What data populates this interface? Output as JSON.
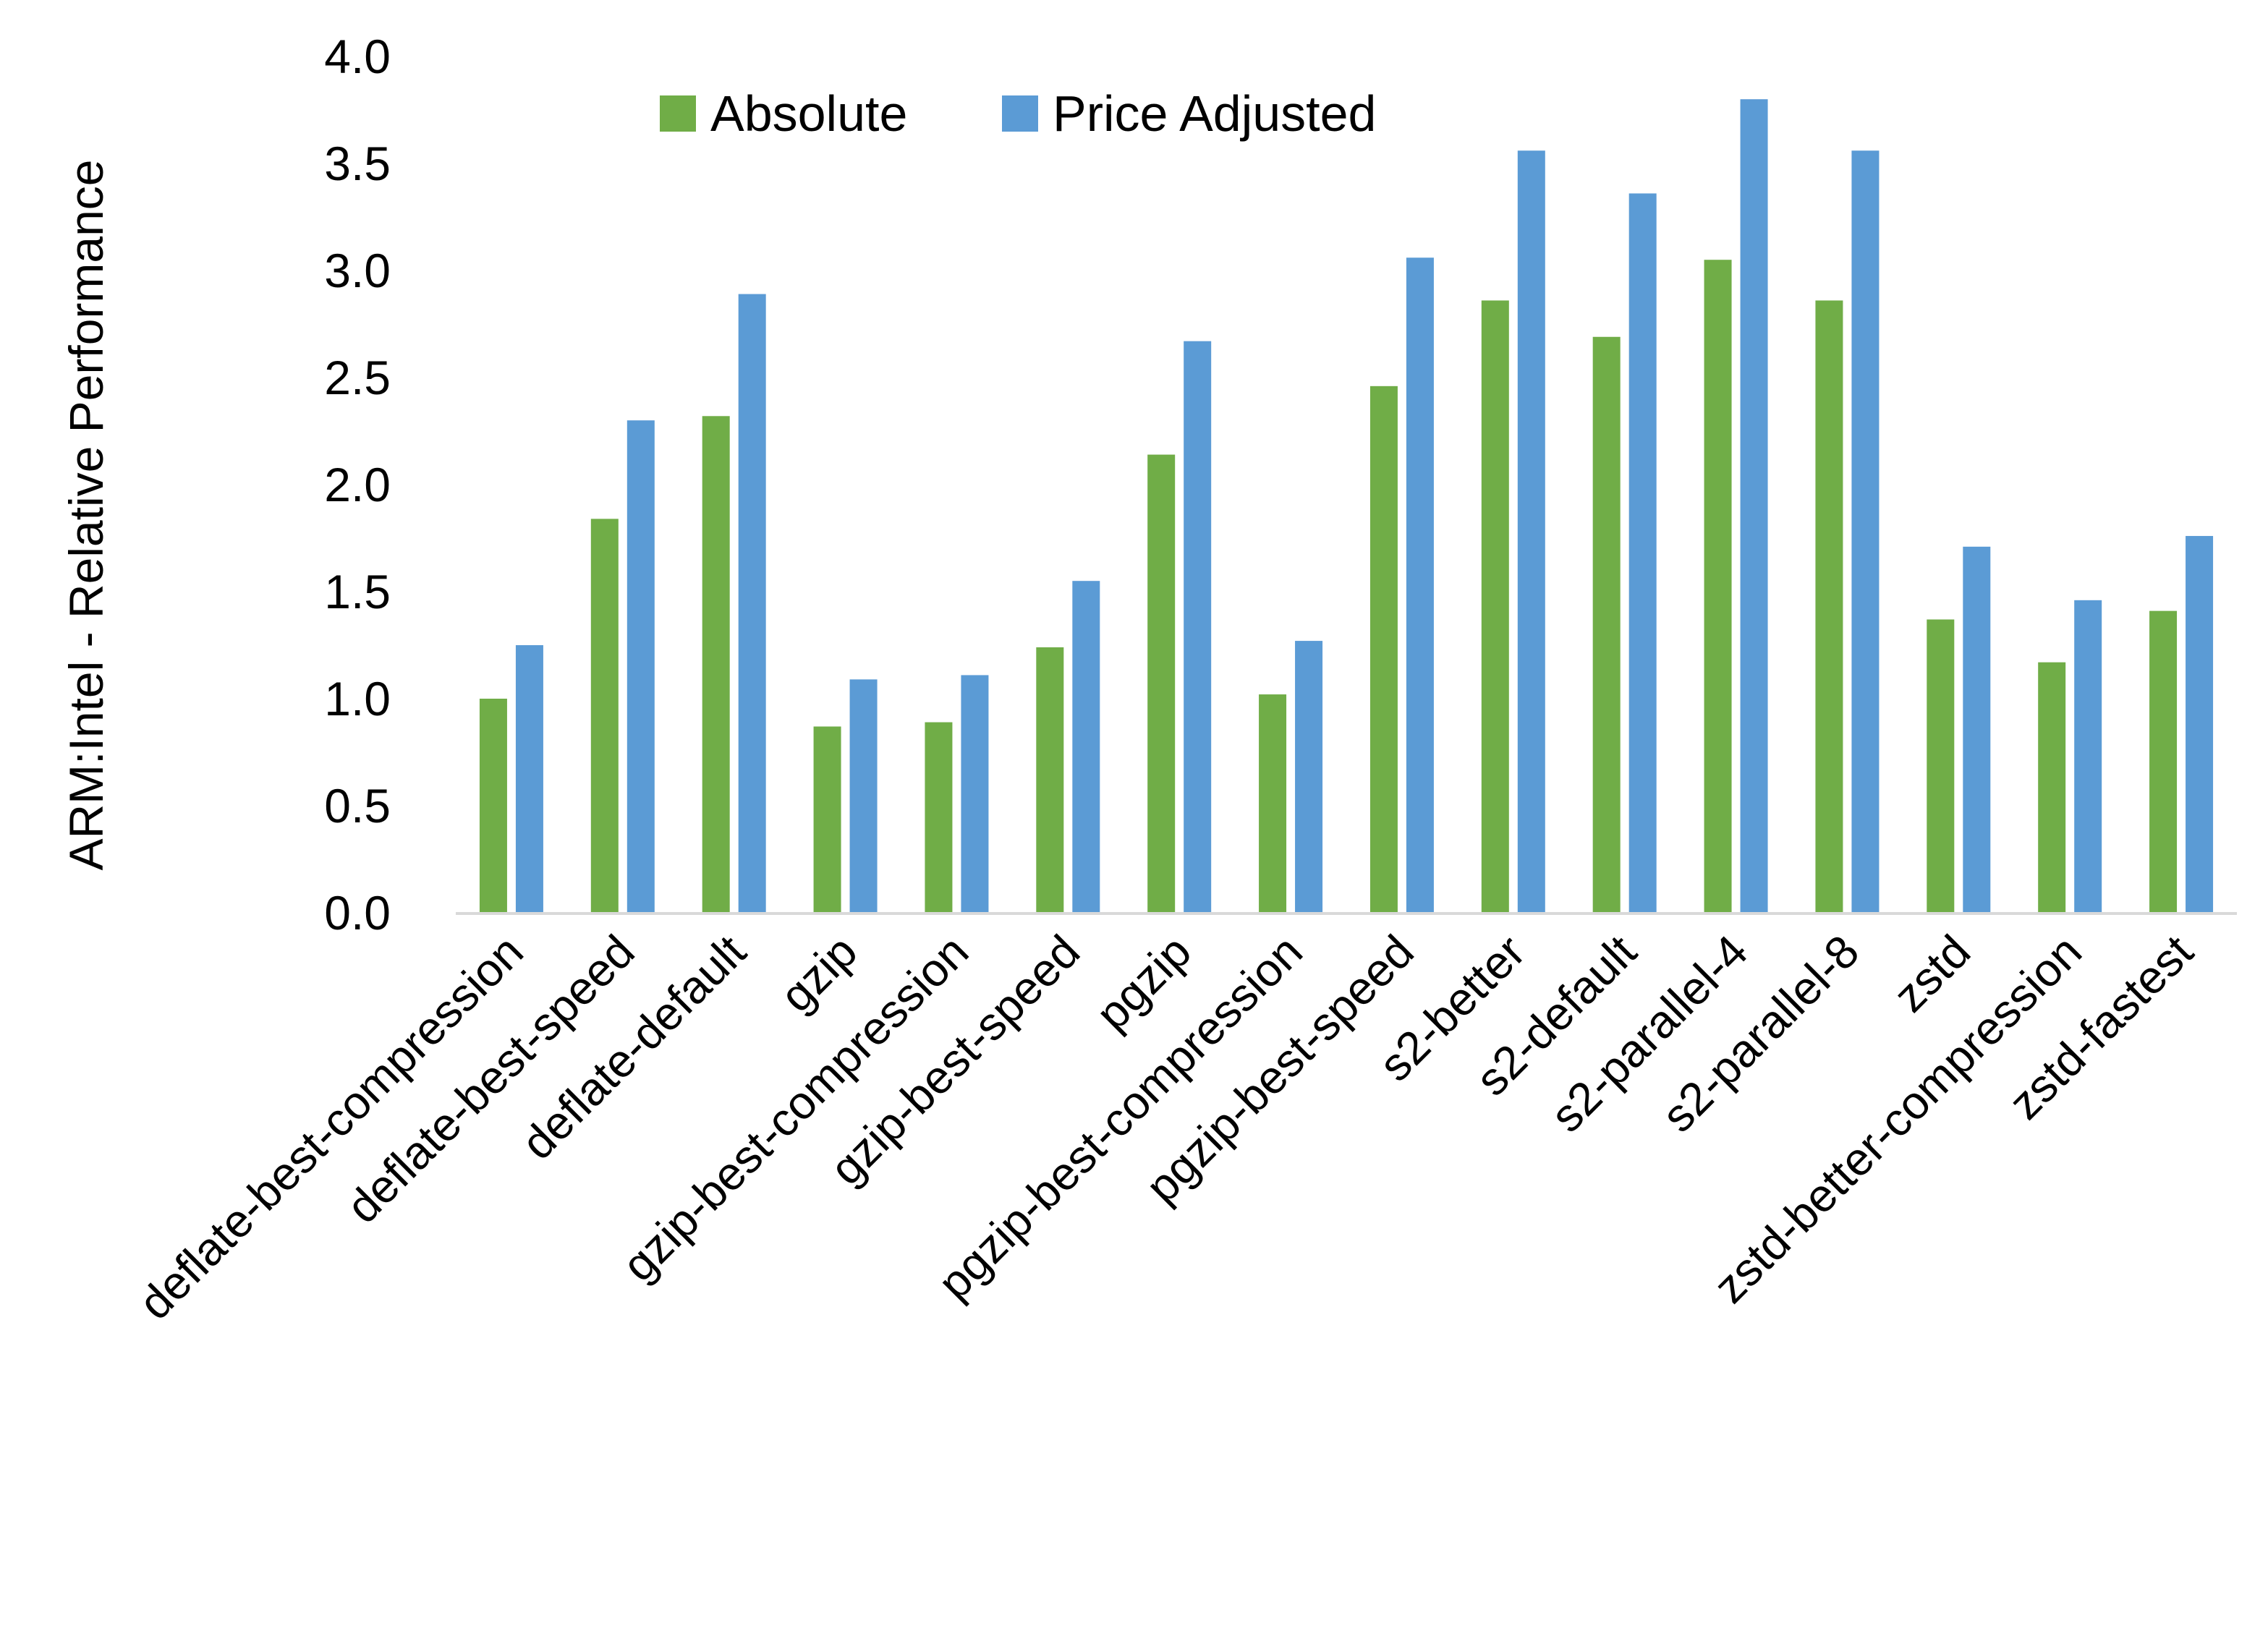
{
  "chart_data": {
    "type": "bar",
    "title": "",
    "xlabel": "",
    "ylabel": "ARM:Intel - Relative Performance",
    "ylim": [
      0,
      4.0
    ],
    "yticks": [
      "0.0",
      "0.5",
      "1.0",
      "1.5",
      "2.0",
      "2.5",
      "3.0",
      "3.5",
      "4.0"
    ],
    "grid": false,
    "legend_position": "top-center",
    "categories": [
      "deflate-best-compression",
      "deflate-best-speed",
      "deflate-default",
      "gzip",
      "gzip-best-compression",
      "gzip-best-speed",
      "pgzip",
      "pgzip-best-compression",
      "pgzip-best-speed",
      "s2-better",
      "s2-default",
      "s2-parallel-4",
      "s2-parallel-8",
      "zstd",
      "zstd-better-compression",
      "zstd-fastest"
    ],
    "series": [
      {
        "name": "Absolute",
        "color": "#70AD47",
        "values": [
          1.0,
          1.84,
          2.32,
          0.87,
          0.89,
          1.24,
          2.14,
          1.02,
          2.46,
          2.86,
          2.69,
          3.05,
          2.86,
          1.37,
          1.17,
          1.41
        ]
      },
      {
        "name": "Price Adjusted",
        "color": "#5B9BD5",
        "values": [
          1.25,
          2.3,
          2.89,
          1.09,
          1.11,
          1.55,
          2.67,
          1.27,
          3.06,
          3.56,
          3.36,
          3.8,
          3.56,
          1.71,
          1.46,
          1.76
        ]
      }
    ]
  }
}
